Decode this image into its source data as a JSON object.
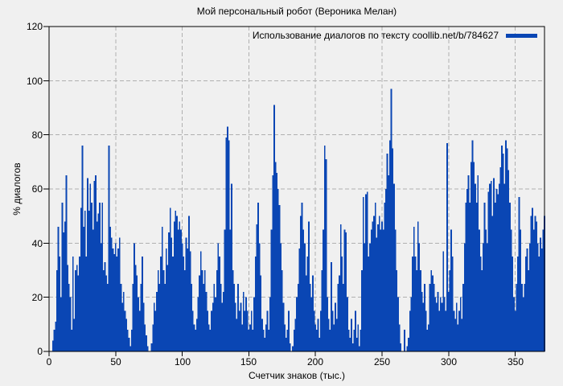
{
  "title": "Мой персональный робот (Вероника Мелан)",
  "legend": {
    "label": "Использование диалогов по тексту coollib.net/b/784627"
  },
  "axes": {
    "x_label": "Счетчик знаков (тыс.)",
    "y_label": "% диалогов"
  },
  "colors": {
    "bar": "#0a46b4",
    "grid": "#b0b0b0",
    "frame": "#000000",
    "background": "#f0f0f0",
    "text": "#000000"
  },
  "chart_data": {
    "type": "bar",
    "title": "Мой персональный робот (Вероника Мелан)",
    "series_label": "Использование диалогов по тексту coollib.net/b/784627",
    "xlabel": "Счетчик знаков (тыс.)",
    "ylabel": "% диалогов",
    "xlim": [
      0,
      372
    ],
    "ylim": [
      0,
      120
    ],
    "xticks": [
      0,
      50,
      100,
      150,
      200,
      250,
      300,
      350
    ],
    "yticks": [
      0,
      20,
      40,
      60,
      80,
      100,
      120
    ],
    "grid": true,
    "legend_position": "top-right",
    "bar_style": "impulses",
    "x_start": 1,
    "x_step": 1,
    "values": [
      0,
      0,
      4,
      8,
      11,
      30,
      46,
      35,
      20,
      55,
      44,
      48,
      65,
      32,
      25,
      20,
      8,
      35,
      12,
      30,
      32,
      28,
      35,
      53,
      76,
      46,
      52,
      35,
      64,
      52,
      62,
      55,
      45,
      63,
      65,
      48,
      51,
      55,
      40,
      55,
      30,
      33,
      28,
      25,
      76,
      46,
      42,
      38,
      36,
      40,
      35,
      38,
      42,
      25,
      18,
      22,
      15,
      12,
      8,
      5,
      2,
      8,
      25,
      40,
      32,
      28,
      20,
      15,
      25,
      35,
      18,
      10,
      6,
      2,
      0,
      0,
      3,
      10,
      18,
      15,
      22,
      30,
      25,
      35,
      46,
      30,
      25,
      38,
      32,
      44,
      53,
      42,
      35,
      48,
      52,
      50,
      45,
      48,
      45,
      40,
      35,
      30,
      42,
      38,
      50,
      37,
      25,
      15,
      10,
      8,
      12,
      20,
      28,
      37,
      30,
      25,
      30,
      22,
      15,
      10,
      8,
      15,
      18,
      25,
      20,
      30,
      40,
      35,
      25,
      18,
      22,
      45,
      79,
      83,
      78,
      45,
      62,
      30,
      25,
      18,
      12,
      25,
      15,
      18,
      10,
      22,
      15,
      20,
      15,
      8,
      10,
      15,
      8,
      20,
      35,
      47,
      55,
      40,
      28,
      12,
      8,
      5,
      10,
      15,
      8,
      20,
      45,
      65,
      91,
      70,
      66,
      60,
      54,
      40,
      30,
      18,
      10,
      5,
      8,
      15,
      3,
      0,
      2,
      8,
      12,
      20,
      25,
      38,
      50,
      55,
      45,
      40,
      28,
      35,
      48,
      25,
      20,
      28,
      15,
      10,
      8,
      12,
      5,
      15,
      30,
      45,
      76,
      71,
      20,
      12,
      8,
      33,
      15,
      10,
      18,
      12,
      25,
      28,
      47,
      35,
      25,
      45,
      44,
      20,
      8,
      5,
      12,
      3,
      8,
      15,
      5,
      10,
      2,
      8,
      30,
      57,
      40,
      58,
      59,
      35,
      40,
      45,
      48,
      50,
      55,
      42,
      47,
      50,
      45,
      48,
      45,
      55,
      60,
      73,
      65,
      78,
      97,
      75,
      62,
      45,
      30,
      20,
      10,
      3,
      0,
      0,
      8,
      0,
      2,
      5,
      15,
      20,
      35,
      46,
      35,
      30,
      48,
      40,
      30,
      22,
      18,
      25,
      15,
      8,
      10,
      25,
      30,
      28,
      25,
      20,
      18,
      22,
      15,
      20,
      18,
      37,
      20,
      15,
      77,
      22,
      30,
      45,
      35,
      15,
      12,
      18,
      10,
      15,
      20,
      12,
      25,
      40,
      55,
      60,
      65,
      55,
      70,
      78,
      70,
      62,
      55,
      65,
      45,
      35,
      30,
      40,
      55,
      45,
      40,
      59,
      62,
      63,
      50,
      64,
      55,
      60,
      58,
      62,
      68,
      76,
      73,
      62,
      78,
      75,
      67,
      55,
      45,
      35,
      20,
      15,
      25,
      35,
      57,
      45,
      25,
      20,
      25,
      35,
      38,
      30,
      40,
      50,
      53,
      45,
      50,
      48,
      40,
      35,
      42,
      38,
      45,
      50
    ]
  }
}
